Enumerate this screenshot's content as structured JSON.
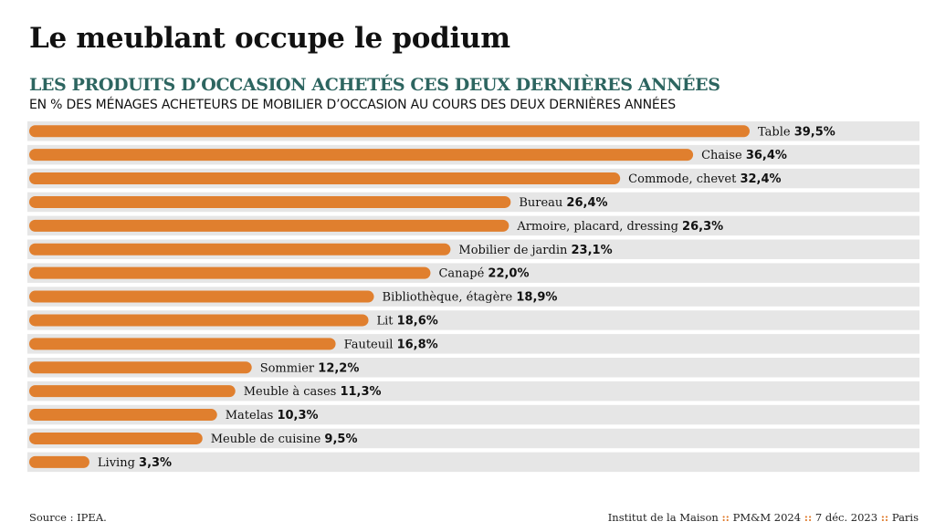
{
  "header": {
    "title": "Le meublant occupe le podium",
    "subtitle": "LES PRODUITS D’OCCASION ACHETÉS CES DEUX DERNIÈRES ANNÉES",
    "unit_note": "EN % DES MÉNAGES ACHETEURS DE MOBILIER D’OCCASION AU COURS DES DEUX DERNIÈRES ANNÉES"
  },
  "colors": {
    "bar": "#e07f2e",
    "track": "#e6e6e6",
    "subtitle": "#2d6560",
    "separator": "#e07a2a"
  },
  "chart_data": {
    "type": "bar",
    "orientation": "horizontal",
    "title": "LES PRODUITS D’OCCASION ACHETÉS CES DEUX DERNIÈRES ANNÉES",
    "xlabel": "",
    "ylabel": "",
    "xlim": [
      0,
      50
    ],
    "grid": false,
    "legend": "none",
    "categories": [
      "Table",
      "Chaise",
      "Commode, chevet",
      "Bureau",
      "Armoire, placard, dressing",
      "Mobilier de jardin",
      "Canapé",
      "Bibliothèque, étagère",
      "Lit",
      "Fauteuil",
      "Sommier",
      "Meuble à cases",
      "Matelas",
      "Meuble de cuisine",
      "Living"
    ],
    "values": [
      39.5,
      36.4,
      32.4,
      26.4,
      26.3,
      23.1,
      22.0,
      18.9,
      18.6,
      16.8,
      12.2,
      11.3,
      10.3,
      9.5,
      3.3
    ],
    "value_labels": [
      "39,5%",
      "36,4%",
      "32,4%",
      "26,4%",
      "26,3%",
      "23,1%",
      "22,0%",
      "18,9%",
      "18,6%",
      "16,8%",
      "12,2%",
      "11,3%",
      "10,3%",
      "9,5%",
      "3,3%"
    ]
  },
  "footer": {
    "source": "Source : IPEA.",
    "credit_parts": [
      "Institut de la Maison",
      "PM&M 2024",
      "7 déc. 2023",
      "Paris"
    ],
    "separator": "::"
  }
}
